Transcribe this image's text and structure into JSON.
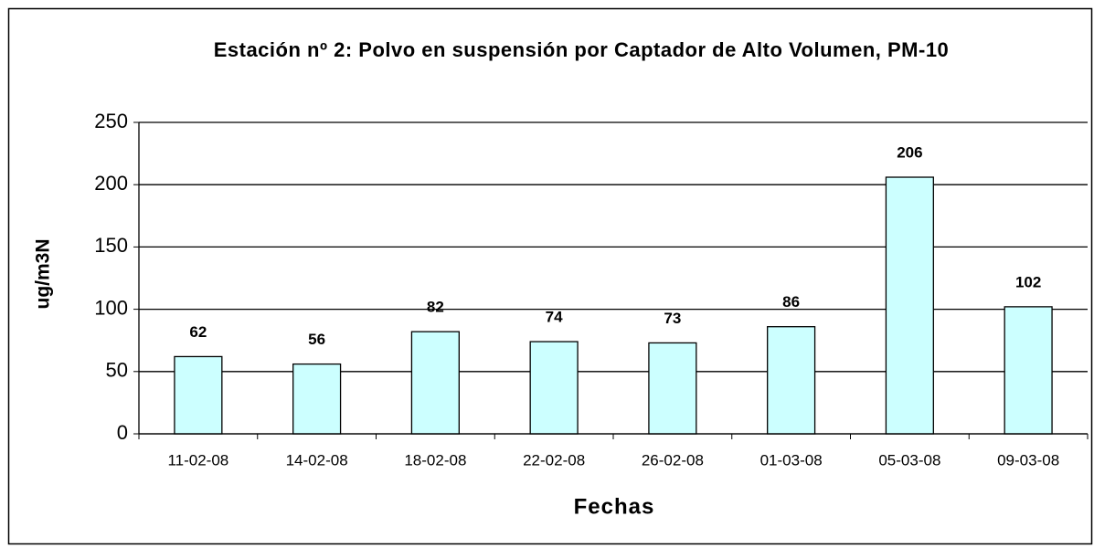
{
  "chart_data": {
    "type": "bar",
    "title": "Estación nº 2: Polvo en suspensión por Captador de Alto Volumen, PM-10",
    "xlabel": "Fechas",
    "ylabel": "ug/m3N",
    "categories": [
      "11-02-08",
      "14-02-08",
      "18-02-08",
      "22-02-08",
      "26-02-08",
      "01-03-08",
      "05-03-08",
      "09-03-08"
    ],
    "values": [
      62,
      56,
      82,
      74,
      73,
      86,
      206,
      102
    ],
    "color": "#ccffff",
    "ylim": [
      0,
      250
    ],
    "yticks": [
      0,
      50,
      100,
      150,
      200,
      250
    ],
    "grid": true
  }
}
